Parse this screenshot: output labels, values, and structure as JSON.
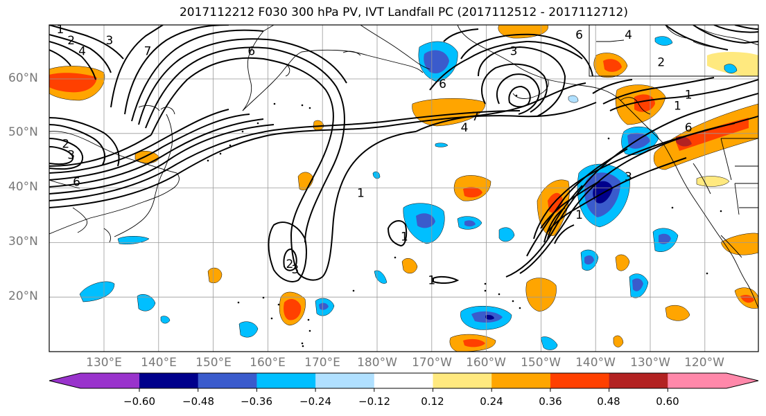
{
  "title": "2017112212 F030 300 hPa PV, IVT Landfall PC (2017112512 - 2017112712)",
  "lat_labels": [
    "60°N",
    "50°N",
    "40°N",
    "30°N",
    "20°N"
  ],
  "lon_labels": [
    "130°E",
    "140°E",
    "150°E",
    "160°E",
    "170°E",
    "180°W",
    "170°W",
    "160°W",
    "150°W",
    "140°W",
    "130°W",
    "120°W"
  ],
  "colorbar": {
    "colors": [
      "#9933cc",
      "#00008b",
      "#3a5bcc",
      "#00bfff",
      "#b0e0ff",
      "#ffffff",
      "#ffe97f",
      "#ffa500",
      "#ff4000",
      "#b22222",
      "#ff88aa"
    ],
    "tick_labels": [
      "−0.60",
      "−0.48",
      "−0.36",
      "−0.24",
      "−0.12",
      "0.12",
      "0.24",
      "0.36",
      "0.48",
      "0.60"
    ]
  },
  "colors": {
    "contour": "#000000",
    "grid": "#999999",
    "coast": "#000000"
  },
  "contour_labels": [
    {
      "text": "1",
      "lon": 122,
      "lat": 69
    },
    {
      "text": "2",
      "lon": 124,
      "lat": 67
    },
    {
      "text": "4",
      "lon": 126,
      "lat": 65
    },
    {
      "text": "3",
      "lon": 131,
      "lat": 67
    },
    {
      "text": "7",
      "lon": 138,
      "lat": 65
    },
    {
      "text": "6",
      "lon": 157,
      "lat": 65
    },
    {
      "text": "6",
      "lon": 192,
      "lat": 59
    },
    {
      "text": "7",
      "lon": 198,
      "lat": 53
    },
    {
      "text": "4",
      "lon": 196,
      "lat": 51
    },
    {
      "text": "3",
      "lon": 205,
      "lat": 65
    },
    {
      "text": "6",
      "lon": 217,
      "lat": 68
    },
    {
      "text": "2",
      "lon": 123,
      "lat": 48
    },
    {
      "text": "3",
      "lon": 124,
      "lat": 46
    },
    {
      "text": "6",
      "lon": 125,
      "lat": 41
    },
    {
      "text": "1",
      "lon": 177,
      "lat": 39
    },
    {
      "text": "1",
      "lon": 185,
      "lat": 31
    },
    {
      "text": "2",
      "lon": 164,
      "lat": 26
    },
    {
      "text": "3",
      "lon": 165,
      "lat": 25
    },
    {
      "text": "1",
      "lon": 190,
      "lat": 23
    },
    {
      "text": "1",
      "lon": 217,
      "lat": 35
    },
    {
      "text": "3",
      "lon": 226,
      "lat": 42
    },
    {
      "text": "1",
      "lon": 235,
      "lat": 55
    },
    {
      "text": "6",
      "lon": 237,
      "lat": 51
    },
    {
      "text": "4",
      "lon": 226,
      "lat": 68
    },
    {
      "text": "2",
      "lon": 232,
      "lat": 63
    },
    {
      "text": "1",
      "lon": 237,
      "lat": 57
    }
  ]
}
